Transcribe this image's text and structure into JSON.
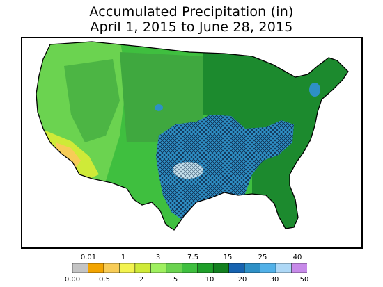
{
  "title": {
    "line1": "Accumulated Precipitation (in)",
    "line2": "April 1, 2015 to June 28, 2015"
  },
  "map": {
    "region": "Contiguous United States",
    "hatched_region": "Texas, Oklahoma, Kansas, Missouri, Arkansas, Louisiana, Mississippi, Illinois, Indiana, Ohio and Kentucky",
    "colors": {
      "dry_southwest": "#cfea38",
      "driest_spot": "#f7cc57",
      "west_green": "#6bd350",
      "midwest_green": "#3fa83f",
      "east_dark_green": "#1c8a2e",
      "wet_blue": "#2e90c6",
      "wettest_light": "#c8e4f0",
      "hatch": "#0f2a4a"
    }
  },
  "legend": {
    "colors": [
      "#c4c4c4",
      "#f2a400",
      "#f7cc57",
      "#f3f34f",
      "#cfea38",
      "#9ff060",
      "#6bd350",
      "#3fbf3f",
      "#1f9f2a",
      "#138020",
      "#1763b0",
      "#2e90c6",
      "#52b1e8",
      "#aed8f6",
      "#c78ae9"
    ],
    "top_labels": [
      "0.01",
      "1",
      "3",
      "7.5",
      "15",
      "25",
      "40"
    ],
    "bottom_labels": [
      "0.00",
      "0.5",
      "2",
      "5",
      "10",
      "20",
      "30",
      "50"
    ]
  }
}
